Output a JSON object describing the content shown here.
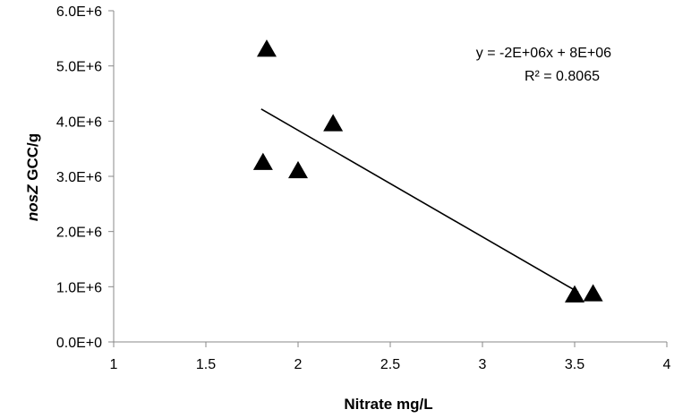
{
  "chart_data": {
    "type": "scatter",
    "xlabel": "Nitrate mg/L",
    "ylabel_italic": "nosZ",
    "ylabel_rest": " GCC/g",
    "xlim": [
      1,
      4
    ],
    "ylim": [
      0,
      6000000
    ],
    "x_ticks": [
      "1",
      "1.5",
      "2",
      "2.5",
      "3",
      "3.5",
      "4"
    ],
    "y_ticks": [
      "0.0E+0",
      "1.0E+6",
      "2.0E+6",
      "3.0E+6",
      "4.0E+6",
      "5.0E+6",
      "6.0E+6"
    ],
    "series": [
      {
        "marker": "triangle",
        "color": "#000000",
        "points": [
          {
            "x": 1.83,
            "y": 5300000
          },
          {
            "x": 1.81,
            "y": 3250000
          },
          {
            "x": 2.0,
            "y": 3100000
          },
          {
            "x": 2.19,
            "y": 3950000
          },
          {
            "x": 3.5,
            "y": 850000
          },
          {
            "x": 3.6,
            "y": 870000
          }
        ]
      }
    ],
    "trendline": {
      "x_start": 1.8,
      "x_end": 3.52,
      "y_start": 4220000,
      "y_end": 900000,
      "color": "#000000"
    },
    "equation": "y = -2E+06x + 8E+06",
    "r_squared": "R² = 0.8065",
    "grid": false,
    "legend": "none"
  }
}
